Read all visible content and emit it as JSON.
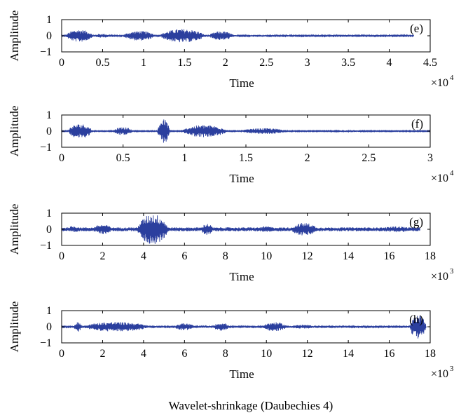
{
  "figure": {
    "caption": "Wavelet-shrinkage (Daubechies 4)",
    "signal_color": "#2b3f9e"
  },
  "chart_data": [
    {
      "type": "line",
      "panel_label": "(e)",
      "xlabel": "Time",
      "ylabel": "Amplitude",
      "x_exponent_label": "×10",
      "x_exponent": "4",
      "xlim": [
        0,
        4.5
      ],
      "ylim": [
        -1,
        1
      ],
      "xticks": [
        0,
        0.5,
        1,
        1.5,
        2,
        2.5,
        3,
        3.5,
        4,
        4.5
      ],
      "xtick_labels": [
        "0",
        "0.5",
        "1",
        "1.5",
        "2",
        "2.5",
        "3",
        "3.5",
        "4",
        "4.5"
      ],
      "yticks": [
        1,
        0,
        -1
      ],
      "ytick_labels": [
        "1",
        "0",
        "−1"
      ],
      "signal_end": 4.3,
      "background_amplitude": 0.04,
      "envelope": [
        {
          "start": 0.05,
          "end": 0.38,
          "amp": 0.38
        },
        {
          "start": 0.38,
          "end": 0.6,
          "amp": 0.12
        },
        {
          "start": 0.75,
          "end": 1.15,
          "amp": 0.3
        },
        {
          "start": 1.2,
          "end": 1.75,
          "amp": 0.42
        },
        {
          "start": 1.8,
          "end": 2.1,
          "amp": 0.28
        },
        {
          "start": 2.2,
          "end": 2.6,
          "amp": 0.06
        }
      ]
    },
    {
      "type": "line",
      "panel_label": "(f)",
      "xlabel": "Time",
      "ylabel": "Amplitude",
      "x_exponent_label": "×10",
      "x_exponent": "4",
      "xlim": [
        0,
        3
      ],
      "ylim": [
        -1,
        1
      ],
      "xticks": [
        0,
        0.5,
        1,
        1.5,
        2,
        2.5,
        3
      ],
      "xtick_labels": [
        "0",
        "0.5",
        "1",
        "1.5",
        "2",
        "2.5",
        "3"
      ],
      "yticks": [
        1,
        0,
        -1
      ],
      "ytick_labels": [
        "1",
        "0",
        "−1"
      ],
      "signal_end": 3.0,
      "background_amplitude": 0.03,
      "envelope": [
        {
          "start": 0.05,
          "end": 0.25,
          "amp": 0.45
        },
        {
          "start": 0.42,
          "end": 0.58,
          "amp": 0.25
        },
        {
          "start": 0.78,
          "end": 0.88,
          "amp": 0.75
        },
        {
          "start": 0.98,
          "end": 1.35,
          "amp": 0.38
        },
        {
          "start": 1.45,
          "end": 1.85,
          "amp": 0.18
        },
        {
          "start": 2.2,
          "end": 2.5,
          "amp": 0.06
        }
      ]
    },
    {
      "type": "line",
      "panel_label": "(g)",
      "xlabel": "Time",
      "ylabel": "Amplitude",
      "x_exponent_label": "×10",
      "x_exponent": "3",
      "xlim": [
        0,
        18
      ],
      "ylim": [
        -1,
        1
      ],
      "xticks": [
        0,
        2,
        4,
        6,
        8,
        10,
        12,
        14,
        16,
        18
      ],
      "xtick_labels": [
        "0",
        "2",
        "4",
        "6",
        "8",
        "10",
        "12",
        "14",
        "16",
        "18"
      ],
      "yticks": [
        1,
        0,
        -1
      ],
      "ytick_labels": [
        "1",
        "0",
        "−1"
      ],
      "signal_end": 17.5,
      "background_amplitude": 0.12,
      "envelope": [
        {
          "start": 0.2,
          "end": 1.0,
          "amp": 0.2
        },
        {
          "start": 1.5,
          "end": 2.5,
          "amp": 0.3
        },
        {
          "start": 3.7,
          "end": 5.2,
          "amp": 0.95
        },
        {
          "start": 6.8,
          "end": 7.4,
          "amp": 0.35
        },
        {
          "start": 9.5,
          "end": 10.5,
          "amp": 0.18
        },
        {
          "start": 11.2,
          "end": 12.5,
          "amp": 0.4
        },
        {
          "start": 15.5,
          "end": 17.2,
          "amp": 0.18
        }
      ]
    },
    {
      "type": "line",
      "panel_label": "(h)",
      "xlabel": "Time",
      "ylabel": "Amplitude",
      "x_exponent_label": "×10",
      "x_exponent": "3",
      "xlim": [
        0,
        18
      ],
      "ylim": [
        -1,
        1
      ],
      "xticks": [
        0,
        2,
        4,
        6,
        8,
        10,
        12,
        14,
        16,
        18
      ],
      "xtick_labels": [
        "0",
        "2",
        "4",
        "6",
        "8",
        "10",
        "12",
        "14",
        "16",
        "18"
      ],
      "yticks": [
        1,
        0,
        -1
      ],
      "ytick_labels": [
        "1",
        "0",
        "−1"
      ],
      "signal_end": 17.8,
      "background_amplitude": 0.04,
      "envelope": [
        {
          "start": 0.6,
          "end": 1.0,
          "amp": 0.3
        },
        {
          "start": 1.0,
          "end": 4.3,
          "amp": 0.3
        },
        {
          "start": 5.5,
          "end": 6.5,
          "amp": 0.22
        },
        {
          "start": 7.4,
          "end": 8.2,
          "amp": 0.25
        },
        {
          "start": 9.8,
          "end": 11.0,
          "amp": 0.28
        },
        {
          "start": 11.0,
          "end": 12.5,
          "amp": 0.12
        },
        {
          "start": 17.0,
          "end": 17.8,
          "amp": 0.75
        }
      ]
    }
  ]
}
